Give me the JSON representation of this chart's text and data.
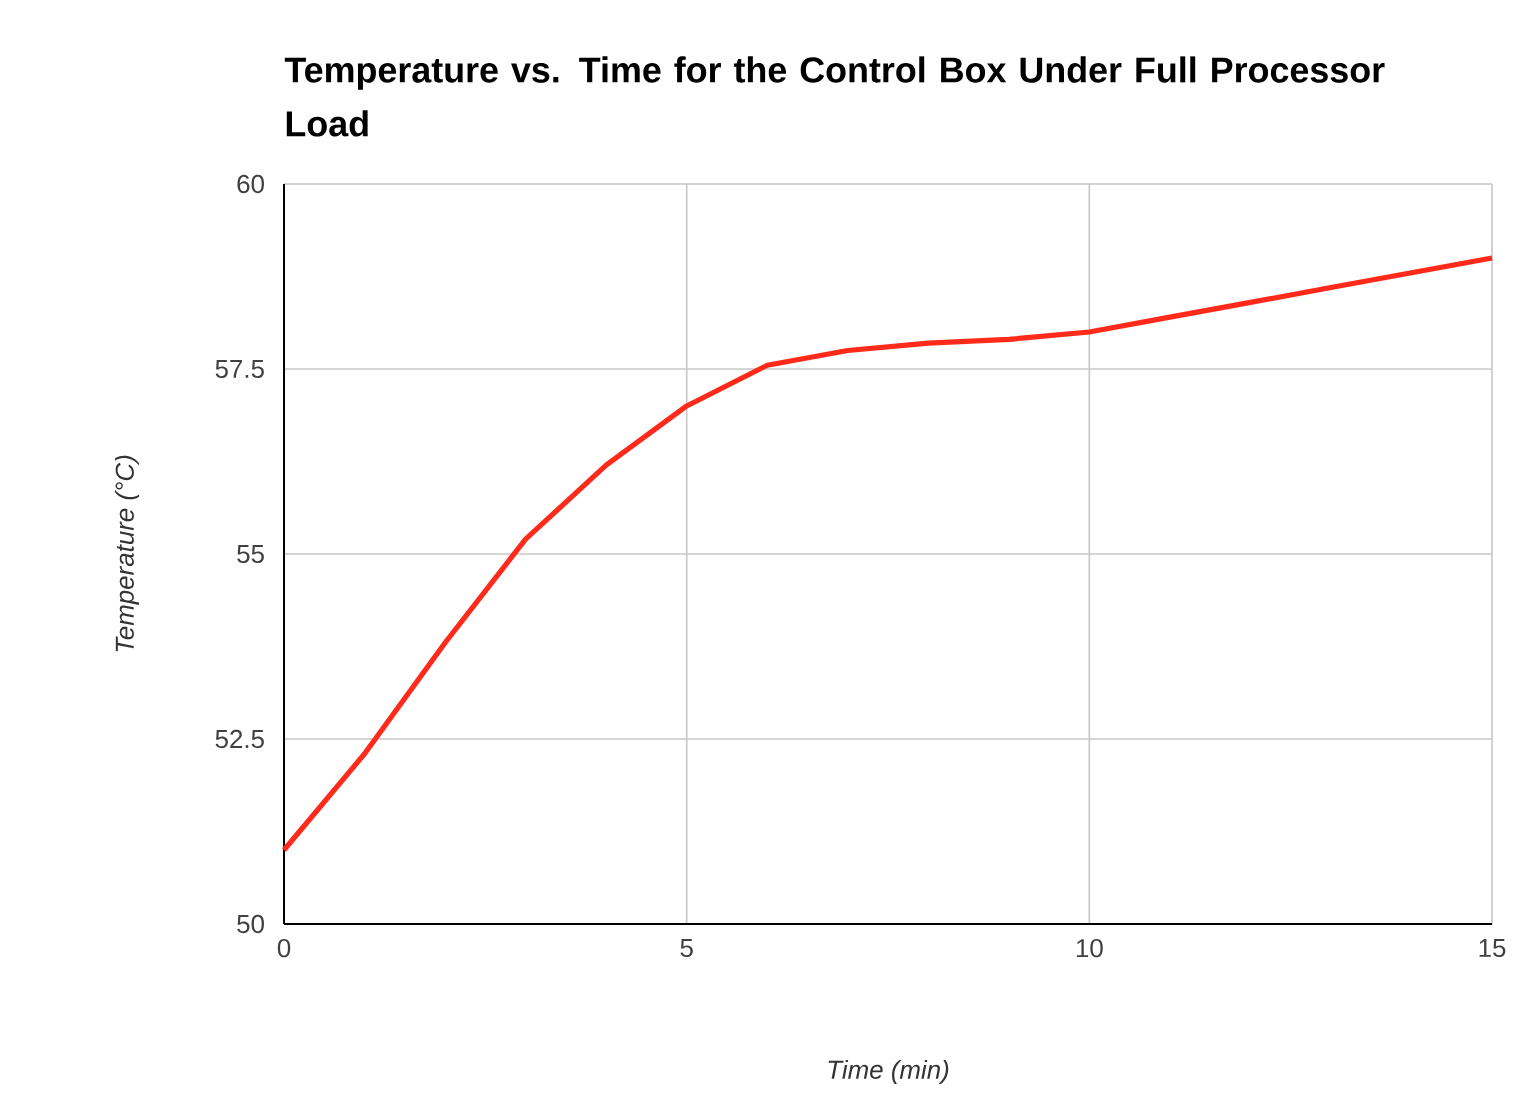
{
  "chart_data": {
    "type": "line",
    "title": "Temperature vs. Time for the Control Box Under Full Processor Load",
    "xlabel": "Time (min)",
    "ylabel": "Temperature (°C)",
    "x": [
      0,
      1,
      2,
      3,
      4,
      5,
      6,
      7,
      8,
      9,
      10,
      11,
      12,
      13,
      14,
      15
    ],
    "series": [
      {
        "color": "#ff2a1a",
        "values": [
          51,
          52.3,
          53.8,
          55.2,
          56.2,
          57,
          57.55,
          57.75,
          57.85,
          57.9,
          58,
          58.2,
          58.4,
          58.6,
          58.8,
          59
        ]
      }
    ],
    "xlim": [
      0,
      15
    ],
    "xticks": [
      0,
      5,
      10,
      15
    ],
    "ylim": [
      50,
      60
    ],
    "yticks": [
      50,
      52.5,
      55,
      57.5,
      60
    ],
    "grid": true,
    "marker": "none",
    "line_style": "solid"
  }
}
